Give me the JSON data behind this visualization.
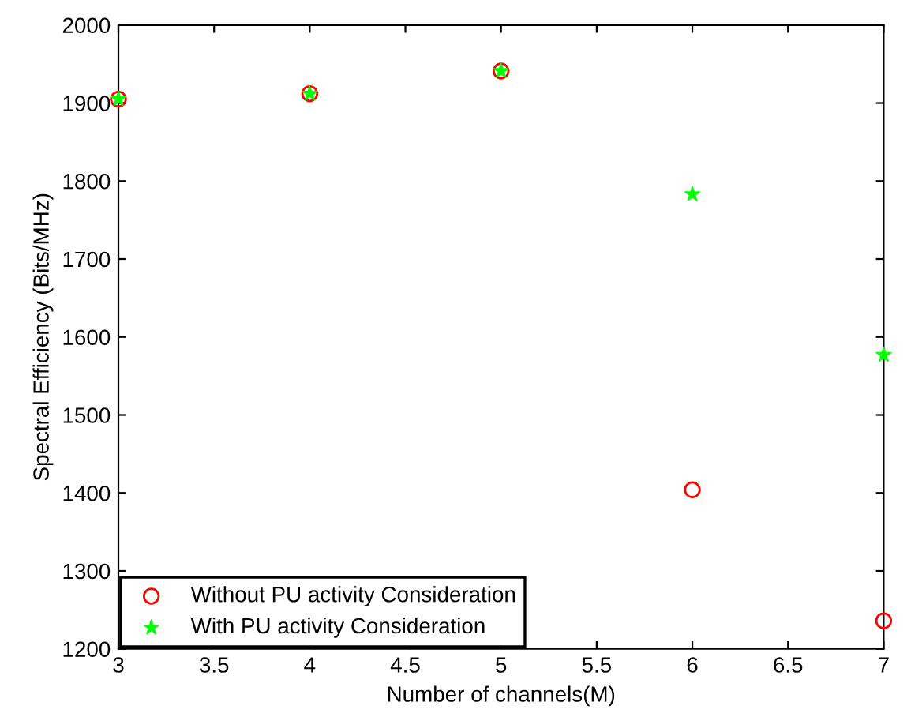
{
  "chart_data": {
    "type": "scatter",
    "xlabel": "Number of channels(M)",
    "ylabel": "Spectral Efficiency (Bits/MHz)",
    "x": [
      3,
      4,
      5,
      6,
      7
    ],
    "series": [
      {
        "name": "Without PU activity Consideration",
        "color": "#ff0000",
        "marker": "circle",
        "values": [
          1905,
          1912,
          1941,
          1404,
          1236
        ]
      },
      {
        "name": "With PU activity Consideration",
        "color": "#00ff00",
        "marker": "star",
        "values": [
          1905,
          1912,
          1941,
          1783,
          1577
        ]
      }
    ],
    "xlim": [
      3,
      7
    ],
    "ylim": [
      1200,
      2000
    ],
    "xticks": [
      3,
      3.5,
      4,
      4.5,
      5,
      5.5,
      6,
      6.5,
      7
    ],
    "yticks": [
      1200,
      1300,
      1400,
      1500,
      1600,
      1700,
      1800,
      1900,
      2000
    ],
    "grid": false,
    "legend": "bottom left"
  }
}
